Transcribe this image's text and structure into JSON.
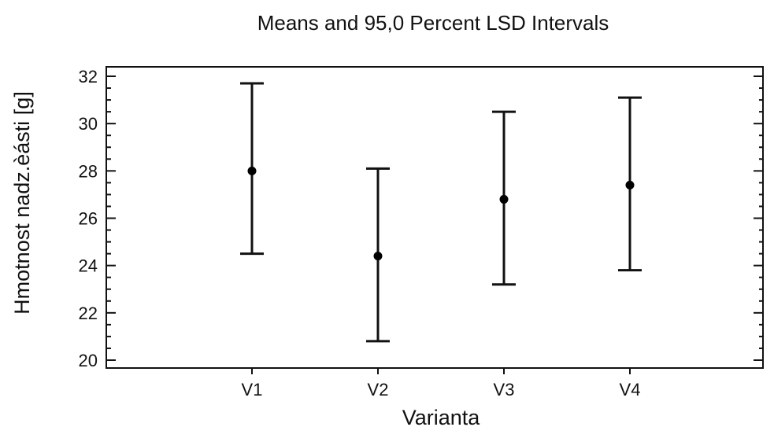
{
  "chart_data": {
    "type": "errorbar",
    "title": "Means and 95,0 Percent LSD Intervals",
    "xlabel": "Varianta",
    "ylabel": "Hmotnost nadz.èásti [g]",
    "ylim": [
      20,
      32
    ],
    "yticks": [
      20,
      22,
      24,
      26,
      28,
      30,
      32
    ],
    "categories": [
      "V1",
      "V2",
      "V3",
      "V4"
    ],
    "means": [
      28.0,
      24.4,
      26.8,
      27.4
    ],
    "lower": [
      24.5,
      20.8,
      23.2,
      23.8
    ],
    "upper": [
      31.7,
      28.1,
      30.5,
      31.1
    ],
    "grid": false,
    "colors": {
      "line": "#111111",
      "marker": "#000000"
    }
  }
}
